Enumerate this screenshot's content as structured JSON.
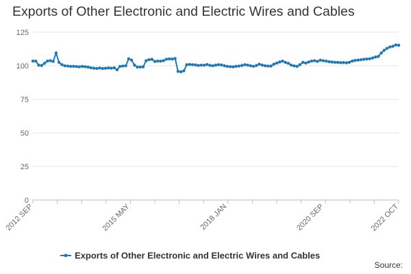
{
  "chart_data": {
    "type": "line",
    "title": "Exports of Other Electronic and Electric Wires and Cables",
    "xlabel": "",
    "ylabel": "",
    "ylim": [
      0,
      125
    ],
    "yticks": [
      0,
      25,
      50,
      75,
      100,
      125
    ],
    "x_start": "2012 SEP",
    "x_end": "2022 OCT",
    "x_tick_labels": [
      "2012 SEP",
      "2015 MAY",
      "2018 JAN",
      "2020 SEP",
      "2022 OCT"
    ],
    "grid": true,
    "legend_position": "bottom",
    "source": "Source:",
    "series": [
      {
        "name": "Exports of Other Electronic and Electric Wires and Cables",
        "color": "#1f78b4",
        "values": [
          103.5,
          103.5,
          100.5,
          100.2,
          101.8,
          103.5,
          103.8,
          103.2,
          109.5,
          102.5,
          100.8,
          100,
          99.8,
          99.5,
          99.6,
          99.4,
          99.2,
          99.5,
          99.3,
          99,
          98.5,
          98.2,
          98,
          98.3,
          98,
          98.1,
          98.4,
          98.2,
          98.5,
          97,
          99.5,
          99.8,
          100,
          105.2,
          104.2,
          100.5,
          99,
          99.1,
          99.2,
          103.8,
          104.5,
          104.8,
          103.2,
          103.5,
          103.4,
          103.8,
          104.9,
          105.1,
          105,
          105.4,
          95.8,
          95.5,
          96.2,
          100.8,
          101,
          100.8,
          100.6,
          100.2,
          100.5,
          100.4,
          100.9,
          100.3,
          100,
          100.5,
          100.8,
          100.6,
          100,
          99.5,
          99.3,
          99.2,
          99.6,
          99.8,
          100.2,
          100.8,
          100.5,
          100,
          99.6,
          100.2,
          101.2,
          100.5,
          100,
          99.8,
          99.8,
          101.2,
          102,
          102.8,
          103.5,
          102.5,
          101.8,
          100.5,
          99.9,
          99.6,
          100.8,
          102.5,
          102,
          102.8,
          103.5,
          103.8,
          103.2,
          104.2,
          103.8,
          103.5,
          103,
          102.8,
          102.6,
          102.5,
          102.3,
          102.4,
          102.2,
          102.6,
          103.5,
          104,
          104.2,
          104.5,
          104.8,
          105,
          105.2,
          105.8,
          106.5,
          107,
          109.5,
          111.5,
          113,
          114,
          114.5,
          115.5,
          115.3
        ]
      }
    ]
  }
}
